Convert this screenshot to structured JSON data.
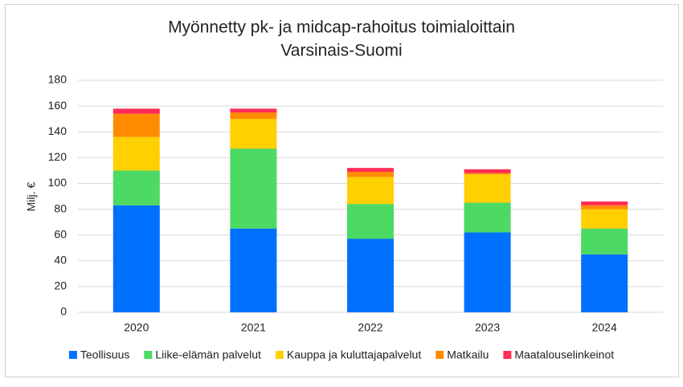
{
  "chart_data": {
    "type": "stacked-bar",
    "title": "Myönnetty pk- ja midcap-rahoitus toimialoittain",
    "subtitle": "Varsinais-Suomi",
    "y_label": "Milj. €",
    "categories": [
      "2020",
      "2021",
      "2022",
      "2023",
      "2024"
    ],
    "series": [
      {
        "name": "Teollisuus",
        "color": "#0070ff",
        "values": [
          83,
          65,
          57,
          62,
          45
        ]
      },
      {
        "name": "Liike-elämän palvelut",
        "color": "#4cd964",
        "values": [
          27,
          62,
          27,
          23,
          20
        ]
      },
      {
        "name": "Kauppa ja kuluttajapalvelut",
        "color": "#ffd000",
        "values": [
          26,
          23,
          21,
          22,
          15
        ]
      },
      {
        "name": "Matkailu",
        "color": "#ff8c00",
        "values": [
          18,
          5,
          4,
          1,
          3
        ]
      },
      {
        "name": "Maatalouselinkeinot",
        "color": "#ff2d55",
        "values": [
          4,
          3,
          3,
          3,
          3
        ]
      }
    ],
    "ylim": [
      0,
      180
    ],
    "yticks": [
      0,
      20,
      40,
      60,
      80,
      100,
      120,
      140,
      160,
      180
    ],
    "grid": true,
    "legend": "bottom"
  }
}
